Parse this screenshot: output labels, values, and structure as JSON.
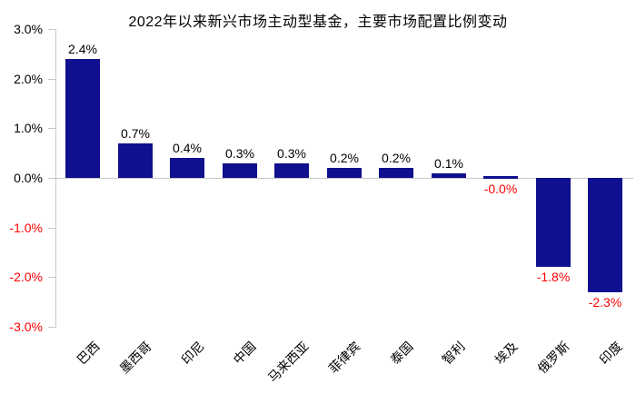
{
  "chart_data": {
    "type": "bar",
    "title": "2022年以来新兴市场主动型基金，主要市场配置比例变动",
    "categories": [
      "巴西",
      "墨西哥",
      "印尼",
      "中国",
      "马来西亚",
      "菲律宾",
      "泰国",
      "智利",
      "埃及",
      "俄罗斯",
      "印度"
    ],
    "values": [
      2.4,
      0.7,
      0.4,
      0.3,
      0.3,
      0.2,
      0.2,
      0.1,
      -0.0,
      -1.8,
      -2.3
    ],
    "value_labels": [
      "2.4%",
      "0.7%",
      "0.4%",
      "0.3%",
      "0.3%",
      "0.2%",
      "0.2%",
      "0.1%",
      "-0.0%",
      "-1.8%",
      "-2.3%"
    ],
    "ytick_labels": [
      "3.0%",
      "2.0%",
      "1.0%",
      "0.0%",
      "-1.0%",
      "-2.0%",
      "-3.0%"
    ],
    "ytick_values": [
      3,
      2,
      1,
      0,
      -1,
      -2,
      -3
    ],
    "ylim": [
      -3,
      3
    ],
    "xlabel": "",
    "ylabel": "",
    "grid": false,
    "legend": null,
    "colors": {
      "bar": "#10108e",
      "positive_text": "#000000",
      "negative_text": "#fe0000",
      "axis": "#c9c9c9",
      "title_text": "#000000"
    }
  }
}
